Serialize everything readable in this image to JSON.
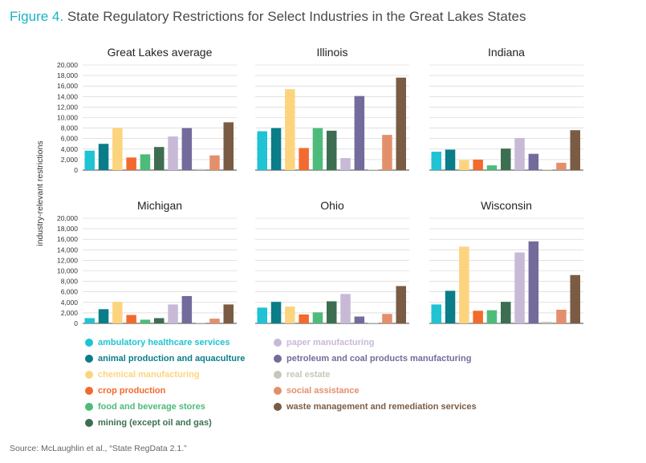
{
  "figure": {
    "label": "Figure 4.",
    "title": "State Regulatory Restrictions for Select Industries in the Great Lakes States",
    "source": "Source: McLaughlin et al., “State RegData 2.1.”"
  },
  "chart_data": {
    "type": "bar",
    "ylabel": "industry-relevant restrictions",
    "ylim": [
      0,
      20000
    ],
    "yticks": [
      "0",
      "2,000",
      "4,000",
      "6,000",
      "8,000",
      "10,000",
      "12,000",
      "14,000",
      "16,000",
      "18,000",
      "20,000"
    ],
    "grid": true,
    "categories": [
      "ambulatory healthcare services",
      "animal production and aquaculture",
      "chemical manufacturing",
      "crop production",
      "food and beverage stores",
      "mining (except oil and gas)",
      "paper manufacturing",
      "petroleum and coal products manufacturing",
      "real estate",
      "social assistance",
      "waste management and remediation services"
    ],
    "colors": [
      "#1fc3d3",
      "#0a7d88",
      "#fdd47e",
      "#f26a2d",
      "#4dbb7a",
      "#3e6e52",
      "#c8bad6",
      "#736b9c",
      "#c8c6b8",
      "#e48f6c",
      "#7a5c44"
    ],
    "panels": [
      {
        "name": "Great Lakes average",
        "values": [
          3700,
          5000,
          8000,
          2400,
          3000,
          4400,
          6400,
          8000,
          200,
          2800,
          9100
        ]
      },
      {
        "name": "Illinois",
        "values": [
          7400,
          8000,
          15400,
          4200,
          8000,
          7500,
          2300,
          14100,
          100,
          6700,
          17600
        ]
      },
      {
        "name": "Indiana",
        "values": [
          3500,
          3900,
          1900,
          2000,
          900,
          4100,
          6100,
          3100,
          100,
          1400,
          7600
        ]
      },
      {
        "name": "Michigan",
        "values": [
          1000,
          2700,
          4100,
          1600,
          700,
          1000,
          3600,
          5200,
          100,
          900,
          3600
        ]
      },
      {
        "name": "Ohio",
        "values": [
          3000,
          4100,
          3200,
          1700,
          2100,
          4200,
          5600,
          1300,
          100,
          1800,
          7100
        ]
      },
      {
        "name": "Wisconsin",
        "values": [
          3600,
          6200,
          14600,
          2400,
          2500,
          4100,
          13500,
          15600,
          300,
          2600,
          9200
        ]
      }
    ]
  }
}
